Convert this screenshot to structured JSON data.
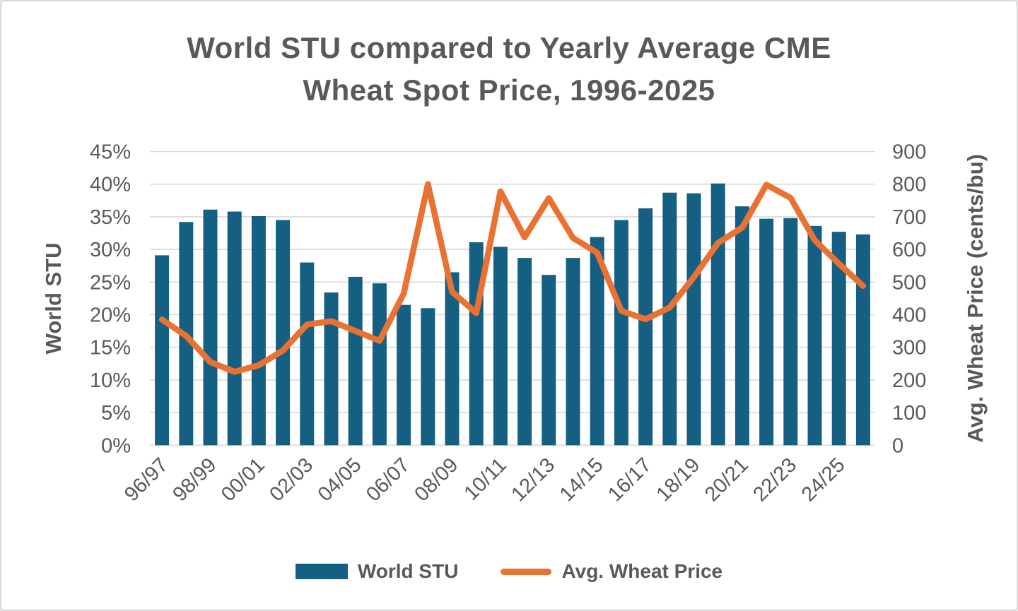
{
  "window": {
    "background": "#ffffff",
    "border_color": "#d9d9d9"
  },
  "colors": {
    "bar": "#156082",
    "line": "#E97132",
    "text": "#595959",
    "grid": "#D9D9D9"
  },
  "chart_data": {
    "type": "bar",
    "subtype": "combo-bar-line-dual-axis",
    "title_lines": [
      "World STU compared to Yearly Average CME",
      "Wheat Spot Price, 1996-2025"
    ],
    "categories": [
      "96/97",
      "97/98",
      "98/99",
      "99/00",
      "00/01",
      "01/02",
      "02/03",
      "03/04",
      "04/05",
      "05/06",
      "06/07",
      "07/08",
      "08/09",
      "09/10",
      "10/11",
      "11/12",
      "12/13",
      "13/14",
      "14/15",
      "15/16",
      "16/17",
      "17/18",
      "18/19",
      "19/20",
      "20/21",
      "21/22",
      "22/23",
      "23/24",
      "24/25",
      "25/26"
    ],
    "x_tick_labels": [
      "96/97",
      "98/99",
      "00/01",
      "02/03",
      "04/05",
      "06/07",
      "08/09",
      "10/11",
      "12/13",
      "14/15",
      "16/17",
      "18/19",
      "20/21",
      "22/23",
      "24/25"
    ],
    "series": [
      {
        "name": "World STU",
        "type": "bar",
        "axis": "left",
        "color": "#156082",
        "unit": "%",
        "values": [
          29.1,
          34.2,
          36.1,
          35.8,
          35.1,
          34.5,
          28.0,
          23.4,
          25.8,
          24.8,
          21.5,
          21.0,
          26.5,
          31.1,
          30.4,
          28.7,
          26.1,
          28.7,
          31.9,
          34.5,
          36.3,
          38.7,
          38.6,
          40.1,
          36.6,
          34.7,
          34.8,
          33.6,
          32.7,
          32.3
        ]
      },
      {
        "name": "Avg. Wheat Price",
        "type": "line",
        "axis": "right",
        "color": "#E97132",
        "unit": "cents/bu",
        "values": [
          385,
          335,
          255,
          225,
          245,
          290,
          370,
          380,
          350,
          320,
          465,
          800,
          470,
          405,
          778,
          637,
          757,
          635,
          590,
          412,
          386,
          422,
          515,
          620,
          667,
          798,
          758,
          628,
          556,
          488
        ]
      }
    ],
    "left_axis": {
      "title": "World STU",
      "min": 0,
      "max": 45,
      "tick_step": 5,
      "tick_labels": [
        "0%",
        "5%",
        "10%",
        "15%",
        "20%",
        "25%",
        "30%",
        "35%",
        "40%",
        "45%"
      ]
    },
    "right_axis": {
      "title": "Avg. Wheat Price (cents/bu)",
      "min": 0,
      "max": 900,
      "tick_step": 100,
      "tick_labels": [
        "0",
        "100",
        "200",
        "300",
        "400",
        "500",
        "600",
        "700",
        "800",
        "900"
      ]
    },
    "grid": true,
    "legend_position": "bottom",
    "legend": [
      {
        "label": "World STU",
        "marker": "bar",
        "color": "#156082"
      },
      {
        "label": "Avg. Wheat Price",
        "marker": "line",
        "color": "#E97132"
      }
    ]
  }
}
